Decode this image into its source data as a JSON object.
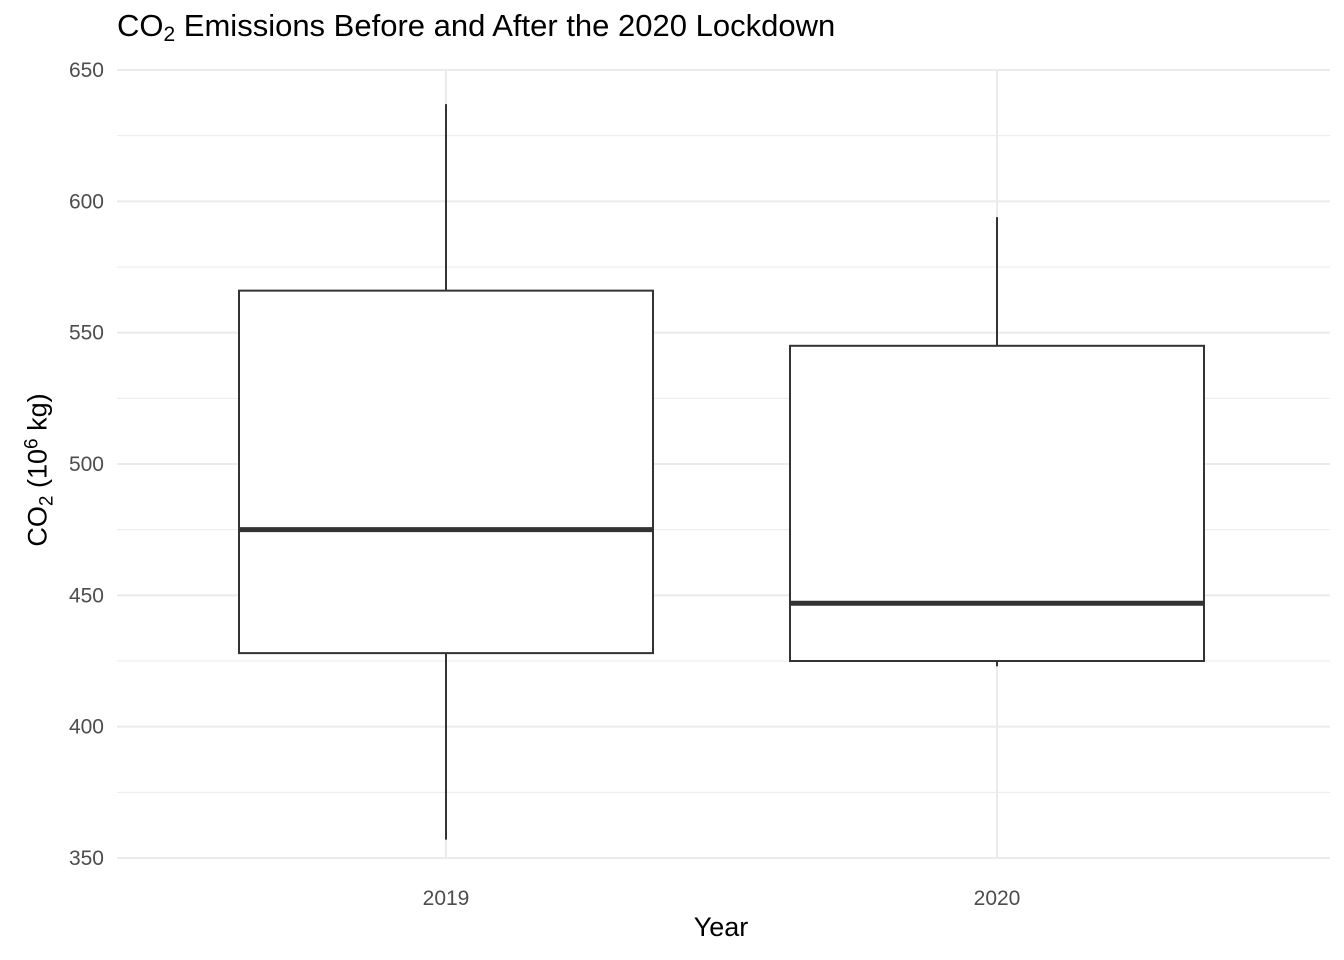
{
  "chart_data": {
    "type": "boxplot",
    "title": {
      "pre": "CO",
      "sub": "2",
      "post": " Emissions Before and After the 2020 Lockdown"
    },
    "xlabel": "Year",
    "ylabel": {
      "pre": "CO",
      "sub": "2",
      "mid": " (10",
      "sup": "6",
      "post": " kg)"
    },
    "categories": [
      "2019",
      "2020"
    ],
    "boxes": [
      {
        "category": "2019",
        "whisker_low": 357,
        "q1": 428,
        "median": 475,
        "q3": 566,
        "whisker_high": 637
      },
      {
        "category": "2020",
        "whisker_low": 423,
        "q1": 425,
        "median": 447,
        "q3": 545,
        "whisker_high": 594
      }
    ],
    "ylim": [
      350,
      650
    ],
    "y_ticks": [
      350,
      400,
      450,
      500,
      550,
      600,
      650
    ],
    "y_minor_ticks": [
      375,
      425,
      475,
      525,
      575,
      625
    ],
    "grid": true,
    "colors": {
      "box_line": "#333333",
      "grid": "#ebebeb",
      "tick_label": "#4d4d4d"
    }
  }
}
